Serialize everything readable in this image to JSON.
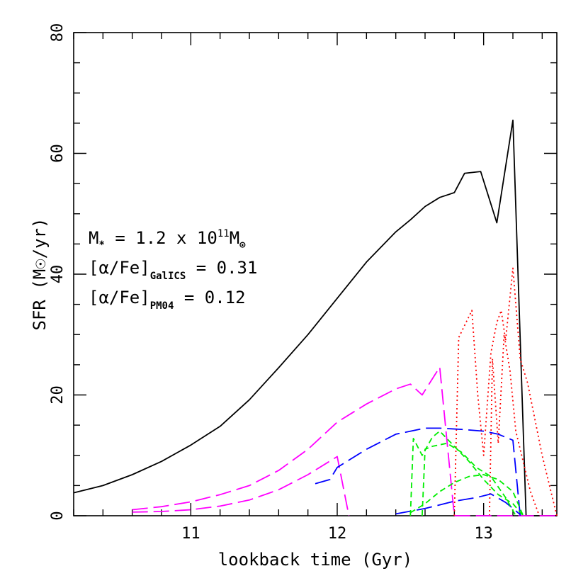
{
  "chart_data": {
    "type": "line",
    "xlabel": "lookback time (Gyr)",
    "ylabel": "SFR  (M☉/yr)",
    "xlim": [
      10.2,
      13.5
    ],
    "ylim": [
      0,
      80
    ],
    "x_tick_labels": [
      "11",
      "12",
      "13"
    ],
    "y_tick_labels": [
      "0",
      "20",
      "40",
      "60",
      "80"
    ],
    "grid": false,
    "annotations": {
      "mass": {
        "prefix": "M",
        "star": "*",
        "eq": " = 1.2 x 10",
        "exp": "11",
        "unit": "M",
        "sun": "⊙"
      },
      "alpha_galics": {
        "bracket": "[α/Fe]",
        "sub": "GalICS",
        "value": " = 0.31"
      },
      "alpha_pm04": {
        "bracket": "[α/Fe]",
        "sub": "PM04",
        "value": " = 0.12"
      }
    },
    "series": [
      {
        "color": "#000000",
        "dash": "solid",
        "x": [
          10.2,
          10.4,
          10.6,
          10.8,
          11.0,
          11.2,
          11.4,
          11.6,
          11.8,
          12.0,
          12.2,
          12.4,
          12.5,
          12.6,
          12.7,
          12.8,
          12.87,
          12.98,
          13.09,
          13.2,
          13.29,
          13.5
        ],
        "y": [
          3.8,
          5.0,
          6.8,
          9.0,
          11.7,
          14.8,
          19.2,
          24.5,
          30.0,
          36.0,
          42.0,
          47.0,
          49.0,
          51.2,
          52.7,
          53.5,
          56.7,
          57.0,
          48.5,
          65.5,
          0,
          0
        ]
      },
      {
        "color": "#ff0000",
        "dash": "dotted",
        "x": [
          12.8,
          12.83,
          12.92,
          12.96,
          13.0,
          13.05,
          13.09,
          13.12,
          13.15,
          13.2,
          13.25,
          13.3,
          13.4,
          13.5
        ],
        "y": [
          0,
          29.5,
          34.0,
          20.0,
          10.0,
          27.0,
          32.0,
          34.0,
          29.0,
          41.0,
          26.0,
          22.0,
          10.0,
          0
        ]
      },
      {
        "color": "#ff0000",
        "dash": "dotted",
        "x": [
          13.04,
          13.06,
          13.1,
          13.14,
          13.18,
          13.22,
          13.28,
          13.32,
          13.38
        ],
        "y": [
          0,
          26.0,
          12.0,
          30.0,
          24.0,
          14.0,
          8.0,
          4.0,
          0
        ]
      },
      {
        "color": "#ff00ff",
        "dash": "longdash",
        "x": [
          10.6,
          10.8,
          11.0,
          11.2,
          11.4,
          11.6,
          11.8,
          12.0,
          12.2,
          12.4,
          12.5,
          12.58,
          12.7,
          12.8,
          13.5
        ],
        "y": [
          1.0,
          1.5,
          2.3,
          3.5,
          5.0,
          7.5,
          11.0,
          15.5,
          18.5,
          21.0,
          21.8,
          20.0,
          24.6,
          0,
          0
        ]
      },
      {
        "color": "#ff00ff",
        "dash": "longdash",
        "x": [
          10.6,
          10.8,
          11.0,
          11.2,
          11.4,
          11.6,
          11.8,
          12.0,
          12.08
        ],
        "y": [
          0.6,
          0.7,
          1.0,
          1.6,
          2.6,
          4.3,
          6.8,
          9.8,
          0
        ]
      },
      {
        "color": "#0000ff",
        "dash": "longdash",
        "x": [
          11.85,
          11.95,
          12.0,
          12.2,
          12.4,
          12.6,
          12.7,
          12.85,
          13.0,
          13.1,
          13.2,
          13.25
        ],
        "y": [
          5.3,
          6.0,
          8.0,
          11.0,
          13.5,
          14.5,
          14.5,
          14.3,
          14.0,
          13.5,
          12.5,
          0
        ]
      },
      {
        "color": "#0000ff",
        "dash": "longdash",
        "x": [
          12.4,
          12.6,
          12.8,
          12.95,
          13.05,
          13.15,
          13.25
        ],
        "y": [
          0.3,
          1.2,
          2.4,
          3.0,
          3.6,
          2.2,
          0.2
        ]
      },
      {
        "color": "#00ee00",
        "dash": "dashed",
        "x": [
          12.5,
          12.52,
          12.58,
          12.65,
          12.7,
          12.8,
          12.9,
          13.0,
          13.1,
          13.2,
          13.27
        ],
        "y": [
          0,
          12.8,
          10.0,
          13.0,
          14.0,
          11.5,
          9.0,
          6.0,
          3.5,
          2.0,
          0
        ]
      },
      {
        "color": "#00ee00",
        "dash": "dashed",
        "x": [
          12.58,
          12.6,
          12.65,
          12.75,
          12.85,
          12.95,
          13.05,
          13.15,
          13.22
        ],
        "y": [
          0,
          11.0,
          11.5,
          12.0,
          10.5,
          8.0,
          6.5,
          3.0,
          0
        ]
      },
      {
        "color": "#00ee00",
        "dash": "dashed",
        "x": [
          12.5,
          12.6,
          12.7,
          12.8,
          12.9,
          13.0,
          13.1,
          13.2,
          13.27
        ],
        "y": [
          0.5,
          2.0,
          4.0,
          5.5,
          6.5,
          6.8,
          6.0,
          4.0,
          0
        ]
      }
    ]
  }
}
